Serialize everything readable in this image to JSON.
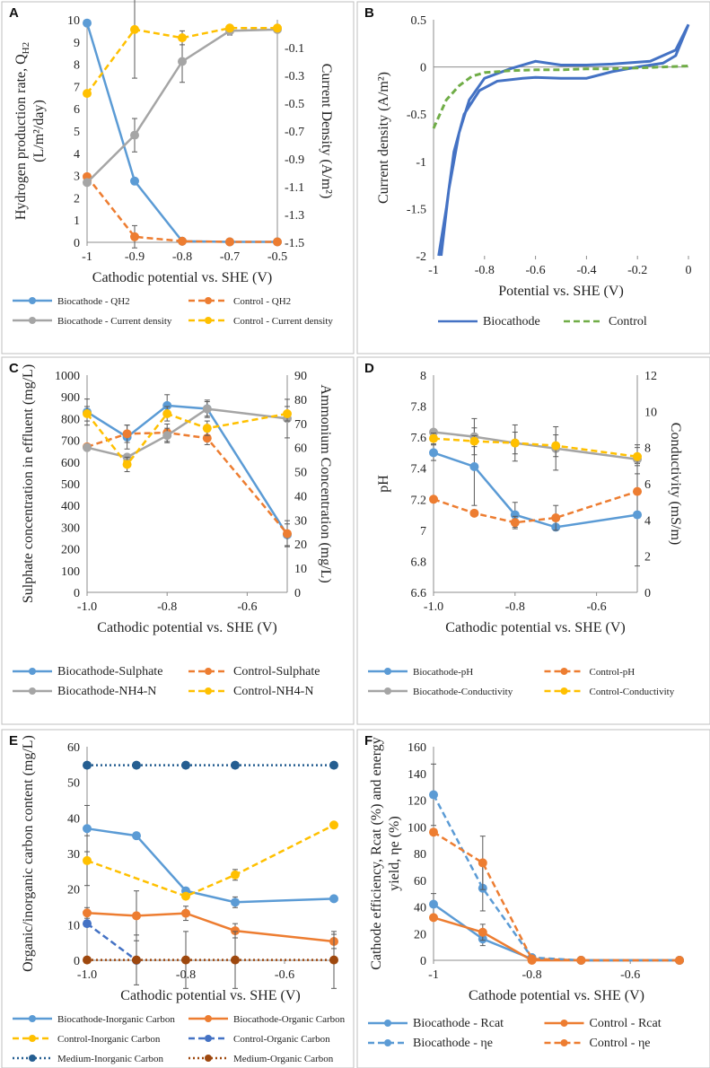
{
  "chart_data": [
    {
      "id": "A",
      "type": "line",
      "panel_label": "A",
      "x_ticks": [
        "-1",
        "-0.9",
        "-0.8",
        "-0.7",
        "-0.5"
      ],
      "xlabel": "Cathodic potential vs. SHE (V)",
      "ylabel": "Hydrogen production rate, Q",
      "ylabel_sub": "H2",
      "ylabel_line2": "(L/m²/day)",
      "y2label": "Current Density (A/m²)",
      "ylim": [
        0,
        10
      ],
      "y_ticks": [
        0,
        1,
        2,
        3,
        4,
        5,
        6,
        7,
        8,
        9,
        10
      ],
      "y2lim": [
        -1.5,
        0.1
      ],
      "y2_ticks": [
        -1.5,
        -1.3,
        -1.1,
        -0.9,
        -0.7,
        -0.5,
        -0.3,
        -0.1
      ],
      "series": [
        {
          "name": "Biocathode - QH2",
          "axis": "left",
          "color": "#5b9bd5",
          "dash": false,
          "values": [
            9.85,
            2.75,
            0.05,
            0.02,
            0.02
          ],
          "err": [
            0,
            0,
            0,
            0,
            0
          ]
        },
        {
          "name": "Control - QH2",
          "axis": "left",
          "color": "#ed7d31",
          "dash": true,
          "values": [
            2.95,
            0.25,
            0.05,
            0.02,
            0.02
          ],
          "err": [
            0,
            0.5,
            0,
            0,
            0
          ]
        },
        {
          "name": "Biocathode - Current density",
          "axis": "right",
          "color": "#a5a5a5",
          "dash": false,
          "values": [
            -1.07,
            -0.73,
            -0.2,
            0.02,
            0.03
          ],
          "err": [
            0,
            0.12,
            0.15,
            0.03,
            0
          ]
        },
        {
          "name": "Control - Current density",
          "axis": "right",
          "color": "#ffc000",
          "dash": true,
          "values": [
            -0.43,
            0.03,
            -0.03,
            0.04,
            0.04
          ],
          "err": [
            0,
            0.35,
            0.05,
            0,
            0
          ]
        }
      ]
    },
    {
      "id": "B",
      "type": "line",
      "panel_label": "B",
      "x_ticks": [
        "-1",
        "-0.8",
        "-0.6",
        "-0.4",
        "-0.2",
        "0"
      ],
      "xlim": [
        -1.0,
        0.0
      ],
      "xlabel": "Potential vs. SHE (V)",
      "ylabel": "Current density (A/m²)",
      "ylim": [
        -2,
        0.5
      ],
      "y_ticks": [
        -2,
        -1.5,
        -1,
        -0.5,
        0,
        0.5
      ],
      "series": [
        {
          "name": "Biocathode",
          "color": "#4472c4",
          "dash": false,
          "x": [
            -0.98,
            -0.95,
            -0.92,
            -0.88,
            -0.82,
            -0.75,
            -0.65,
            -0.6,
            -0.5,
            -0.4,
            -0.3,
            -0.2,
            -0.1,
            -0.05,
            0.0,
            -0.05,
            -0.15,
            -0.3,
            -0.4,
            -0.5,
            -0.6,
            -0.7,
            -0.8,
            -0.86,
            -0.9,
            -0.94,
            -0.97
          ],
          "y": [
            -2.0,
            -1.5,
            -0.9,
            -0.5,
            -0.25,
            -0.15,
            -0.12,
            -0.11,
            -0.12,
            -0.12,
            -0.05,
            0.0,
            0.04,
            0.12,
            0.45,
            0.18,
            0.06,
            0.03,
            0.02,
            0.02,
            0.06,
            -0.02,
            -0.12,
            -0.35,
            -0.7,
            -1.3,
            -2.0
          ]
        },
        {
          "name": "Control",
          "color": "#70ad47",
          "dash": true,
          "x": [
            -1.0,
            -0.95,
            -0.9,
            -0.85,
            -0.8,
            -0.7,
            -0.6,
            -0.5,
            -0.4,
            -0.3,
            -0.2,
            -0.1,
            0.0
          ],
          "y": [
            -0.65,
            -0.35,
            -0.2,
            -0.1,
            -0.06,
            -0.04,
            -0.03,
            -0.03,
            -0.02,
            -0.02,
            -0.01,
            0.0,
            0.01
          ]
        }
      ]
    },
    {
      "id": "C",
      "type": "line",
      "panel_label": "C",
      "xlim": [
        -1.0,
        -0.5
      ],
      "x_ticks": [
        "-1.0",
        "-0.8",
        "-0.6"
      ],
      "x_tick_values": [
        -1.0,
        -0.8,
        -0.6
      ],
      "xlabel": "Cathodic potential vs. SHE (V)",
      "ylabel": "Sulphate concentration in effluent (mg/L)",
      "y2label": "Ammonium Concentration (mg/L)",
      "ylim": [
        0,
        1000
      ],
      "y_ticks": [
        0,
        100,
        200,
        300,
        400,
        500,
        600,
        700,
        800,
        900,
        1000
      ],
      "y2lim": [
        0,
        90
      ],
      "y2_ticks": [
        0,
        10,
        20,
        30,
        40,
        50,
        60,
        70,
        80,
        90
      ],
      "x": [
        -1.0,
        -0.9,
        -0.8,
        -0.7,
        -0.5
      ],
      "series": [
        {
          "name": "Biocathode-Sulphate",
          "axis": "left",
          "color": "#5b9bd5",
          "dash": false,
          "values": [
            830,
            715,
            860,
            845,
            265
          ],
          "err": [
            60,
            55,
            50,
            40,
            50
          ]
        },
        {
          "name": "Control-Sulphate",
          "axis": "left",
          "color": "#ed7d31",
          "dash": true,
          "values": [
            670,
            730,
            735,
            710,
            270
          ],
          "err": [
            0,
            40,
            40,
            30,
            60
          ]
        },
        {
          "name": "Biocathode-NH4-N",
          "axis": "right",
          "color": "#a5a5a5",
          "dash": false,
          "values": [
            60,
            56,
            65,
            76,
            72
          ],
          "err": [
            0,
            0,
            3,
            3,
            8
          ]
        },
        {
          "name": "Control-NH4-N",
          "axis": "right",
          "color": "#ffc000",
          "dash": true,
          "values": [
            74,
            53,
            74,
            68,
            74
          ],
          "err": [
            3,
            3,
            3,
            3,
            3
          ]
        }
      ]
    },
    {
      "id": "D",
      "type": "line",
      "panel_label": "D",
      "xlim": [
        -1.0,
        -0.5
      ],
      "x_ticks": [
        "-1.0",
        "-0.8",
        "-0.6"
      ],
      "x_tick_values": [
        -1.0,
        -0.8,
        -0.6
      ],
      "xlabel": "Cathodic potential vs. SHE (V)",
      "ylabel": "pH",
      "y2label": "Conductivity (mS/m)",
      "ylim": [
        6.6,
        8.0
      ],
      "y_ticks": [
        "6.6",
        "6.8",
        "7",
        "7.2",
        "7.4",
        "7.6",
        "7.8",
        "8"
      ],
      "y_tick_values": [
        6.6,
        6.8,
        7.0,
        7.2,
        7.4,
        7.6,
        7.8,
        8.0
      ],
      "y2lim": [
        0,
        12
      ],
      "y2_ticks": [
        0,
        2,
        4,
        6,
        8,
        10,
        12
      ],
      "x": [
        -1.0,
        -0.9,
        -0.8,
        -0.7,
        -0.5
      ],
      "series": [
        {
          "name": "Biocathode-pH",
          "axis": "left",
          "color": "#5b9bd5",
          "dash": false,
          "values": [
            7.5,
            7.41,
            7.1,
            7.02,
            7.1
          ],
          "err": [
            0.05,
            0.25,
            0.08,
            0,
            0.33
          ]
        },
        {
          "name": "Control-pH",
          "axis": "left",
          "color": "#ed7d31",
          "dash": true,
          "values": [
            7.2,
            7.11,
            7.05,
            7.08,
            7.25
          ],
          "err": [
            0,
            0,
            0.04,
            0.08,
            0
          ]
        },
        {
          "name": "Biocathode-Conductivity",
          "axis": "right",
          "color": "#a5a5a5",
          "dash": false,
          "values": [
            8.85,
            8.6,
            8.25,
            7.95,
            7.35
          ],
          "err": [
            0,
            1.0,
            1.0,
            1.2,
            0.8
          ]
        },
        {
          "name": "Control-Conductivity",
          "axis": "right",
          "color": "#ffc000",
          "dash": true,
          "values": [
            8.5,
            8.35,
            8.25,
            8.1,
            7.5
          ],
          "err": [
            0.3,
            0.3,
            0.6,
            0.6,
            0.5
          ]
        }
      ]
    },
    {
      "id": "E",
      "type": "line",
      "panel_label": "E",
      "xlim": [
        -1.0,
        -0.5
      ],
      "x_ticks": [
        "-1.0",
        "-0.8",
        "-0.6"
      ],
      "x_tick_values": [
        -1.0,
        -0.8,
        -0.6
      ],
      "xlabel": "Cathodic potential vs. SHE (V)",
      "ylabel": "Organic/inorganic carbon content (mg/L)",
      "ylim": [
        0,
        60
      ],
      "y_ticks": [
        0,
        10,
        20,
        30,
        40,
        50,
        60
      ],
      "x": [
        -1.0,
        -0.9,
        -0.8,
        -0.7,
        -0.5
      ],
      "series": [
        {
          "name": "Biocathode-Inorganic Carbon",
          "color": "#5b9bd5",
          "dash": "solid",
          "values": [
            37,
            35,
            19.5,
            16.3,
            17.3
          ],
          "err": [
            6.5,
            0,
            0,
            1.5,
            0
          ]
        },
        {
          "name": "Biocathode-Organic Carbon",
          "color": "#ed7d31",
          "dash": "solid",
          "values": [
            13.3,
            12.5,
            13.2,
            8.3,
            5.3
          ],
          "err": [
            1.5,
            7,
            2,
            2,
            2
          ]
        },
        {
          "name": "Control-Inorganic Carbon",
          "color": "#ffc000",
          "dash": "dash",
          "values": [
            28,
            null,
            18,
            24,
            38
          ],
          "err": [
            7,
            0,
            0,
            1.5,
            0
          ]
        },
        {
          "name": "Control-Organic Carbon",
          "color": "#4472c4",
          "dash": "dash",
          "values": [
            10.3,
            0,
            null,
            null,
            null
          ],
          "err": [
            0,
            0,
            0,
            0,
            0
          ]
        },
        {
          "name": "Medium-Inorganic Carbon",
          "color": "#255e91",
          "dash": "dot",
          "values": [
            54.8,
            54.8,
            54.8,
            54.8,
            54.8
          ],
          "err": [
            0,
            0,
            0,
            0,
            0
          ]
        },
        {
          "name": "Medium-Organic Carbon",
          "color": "#9e480e",
          "dash": "dot",
          "values": [
            0.1,
            0.1,
            0.1,
            0.1,
            0.1
          ],
          "err": [
            0,
            7,
            8,
            8,
            8
          ]
        }
      ]
    },
    {
      "id": "F",
      "type": "line",
      "panel_label": "F",
      "xlim": [
        -1.0,
        -0.5
      ],
      "x_ticks": [
        "-1",
        "-0.8",
        "-0.6"
      ],
      "x_tick_values": [
        -1.0,
        -0.8,
        -0.6
      ],
      "xlabel": "Cathode potential vs. SHE (V)",
      "ylabel": "Cathode efficiency, Rcat (%) and energy",
      "ylabel_line2": "yield, ηe (%)",
      "ylim": [
        0,
        160
      ],
      "y_ticks": [
        0,
        20,
        40,
        60,
        80,
        100,
        120,
        140,
        160
      ],
      "x": [
        -1.0,
        -0.9,
        -0.8,
        -0.7,
        -0.5
      ],
      "series": [
        {
          "name": "Biocathode - Rcat",
          "color": "#5b9bd5",
          "dash": false,
          "values": [
            42,
            16,
            1,
            0,
            0
          ],
          "err": [
            8,
            5,
            0,
            0,
            0
          ]
        },
        {
          "name": "Control - Rcat",
          "color": "#ed7d31",
          "dash": false,
          "values": [
            32,
            21,
            0,
            0,
            0
          ],
          "err": [
            0,
            6,
            0,
            0,
            0
          ]
        },
        {
          "name": "Biocathode - ηe",
          "color": "#5b9bd5",
          "dash": true,
          "values": [
            124,
            54,
            2,
            0,
            0
          ],
          "err": [
            23,
            17,
            0,
            0,
            0
          ]
        },
        {
          "name": "Control - ηe",
          "color": "#ed7d31",
          "dash": true,
          "values": [
            96,
            73,
            1,
            0,
            0
          ],
          "err": [
            0,
            20,
            0,
            0,
            0
          ]
        }
      ]
    }
  ]
}
